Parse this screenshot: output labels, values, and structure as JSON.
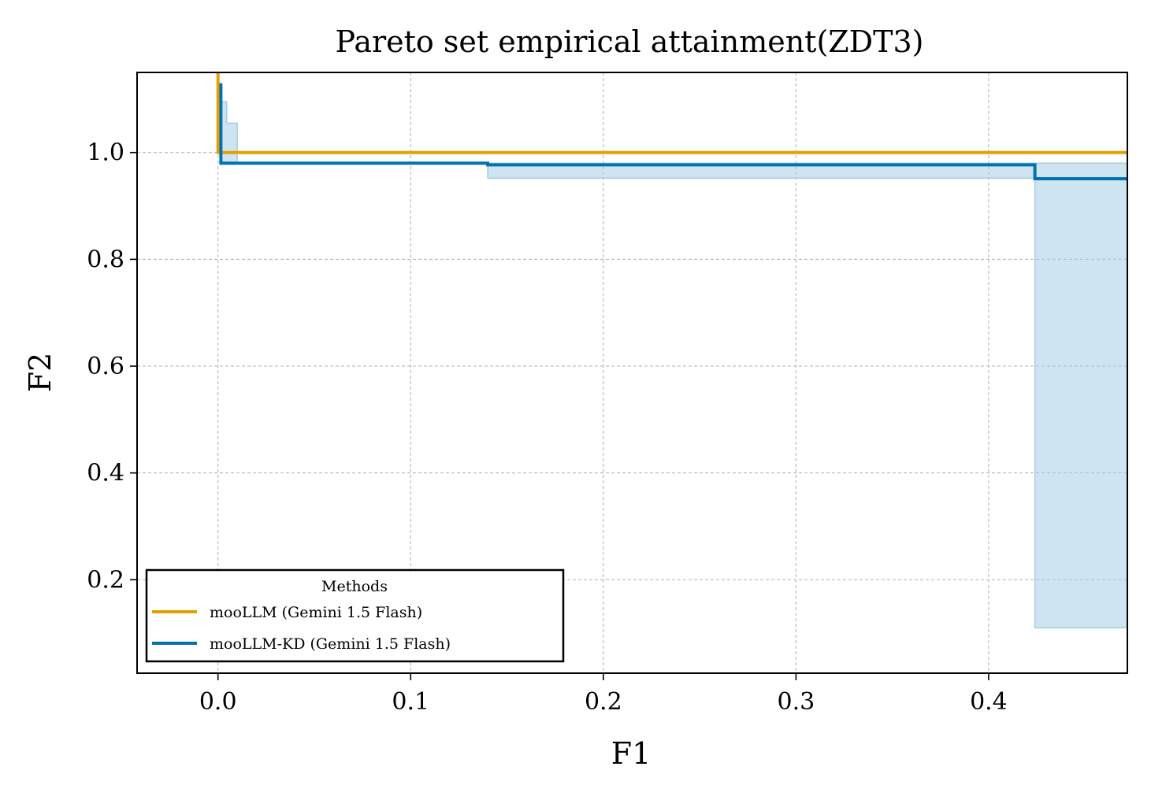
{
  "chart_data": {
    "type": "line",
    "title": "Pareto set empirical attainment(ZDT3)",
    "xlabel": "F1",
    "ylabel": "F2",
    "xlim": [
      -0.042,
      0.472
    ],
    "ylim": [
      0.025,
      1.15
    ],
    "xticks": [
      {
        "value": 0.0,
        "label": "0.0"
      },
      {
        "value": 0.1,
        "label": "0.1"
      },
      {
        "value": 0.2,
        "label": "0.2"
      },
      {
        "value": 0.3,
        "label": "0.3"
      },
      {
        "value": 0.4,
        "label": "0.4"
      }
    ],
    "yticks": [
      {
        "value": 0.2,
        "label": "0.2"
      },
      {
        "value": 0.4,
        "label": "0.4"
      },
      {
        "value": 0.6,
        "label": "0.6"
      },
      {
        "value": 0.8,
        "label": "0.8"
      },
      {
        "value": 1.0,
        "label": "1.0"
      }
    ],
    "grid": true,
    "legend": {
      "title": "Methods",
      "placement": "lower-left"
    },
    "series": [
      {
        "name": "mooLLM (Gemini 1.5 Flash)",
        "color": "#e69f00",
        "x": [
          0.0,
          0.0,
          0.472
        ],
        "y": [
          1.15,
          1.0,
          1.0
        ]
      },
      {
        "name": "mooLLM-KD (Gemini 1.5 Flash)",
        "color": "#0072b2",
        "x": [
          0.0015,
          0.0015,
          0.14,
          0.14,
          0.424,
          0.424,
          0.472
        ],
        "y": [
          1.13,
          0.98,
          0.98,
          0.977,
          0.977,
          0.951,
          0.951
        ]
      }
    ],
    "band": {
      "series": "mooLLM-KD (Gemini 1.5 Flash)",
      "color": "#a6cee3",
      "upper": {
        "x": [
          0.0015,
          0.0015,
          0.0045,
          0.0045,
          0.01,
          0.01,
          0.472
        ],
        "y": [
          1.13,
          1.095,
          1.095,
          1.055,
          1.055,
          0.98,
          0.98
        ]
      },
      "lower": {
        "x": [
          0.0015,
          0.14,
          0.14,
          0.424,
          0.424,
          0.472
        ],
        "y": [
          0.98,
          0.98,
          0.952,
          0.952,
          0.11,
          0.11
        ]
      }
    }
  }
}
